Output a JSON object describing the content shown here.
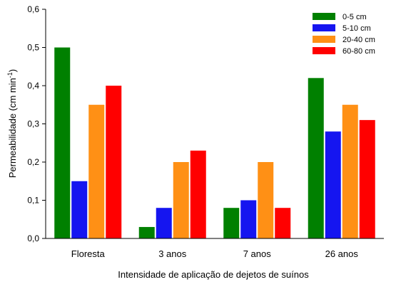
{
  "chart_data": {
    "type": "bar",
    "title": "",
    "xlabel": "Intensidade de aplicação de dejetos de suínos",
    "ylabel_main": "Permeabilidade (cm min",
    "ylabel_sup": "-1",
    "ylabel_close": ")",
    "categories": [
      "Floresta",
      "3 anos",
      "7 anos",
      "26 anos"
    ],
    "ylim": [
      0,
      0.6
    ],
    "yticks": [
      0,
      0.1,
      0.2,
      0.3,
      0.4,
      0.5,
      0.6
    ],
    "ytick_labels": [
      "0,0",
      "0,1",
      "0,2",
      "0,3",
      "0,4",
      "0,5",
      "0,6"
    ],
    "grid": false,
    "legend_position": "top-right",
    "series": [
      {
        "name": "0-5 cm",
        "color": "#008000",
        "values": [
          0.5,
          0.03,
          0.08,
          0.42
        ]
      },
      {
        "name": "5-10 cm",
        "color": "#1515f0",
        "values": [
          0.15,
          0.08,
          0.1,
          0.28
        ]
      },
      {
        "name": "20-40 cm",
        "color": "#ff9015",
        "values": [
          0.35,
          0.2,
          0.2,
          0.35
        ]
      },
      {
        "name": "60-80 cm",
        "color": "#ff0000",
        "values": [
          0.4,
          0.23,
          0.08,
          0.31
        ]
      }
    ]
  }
}
